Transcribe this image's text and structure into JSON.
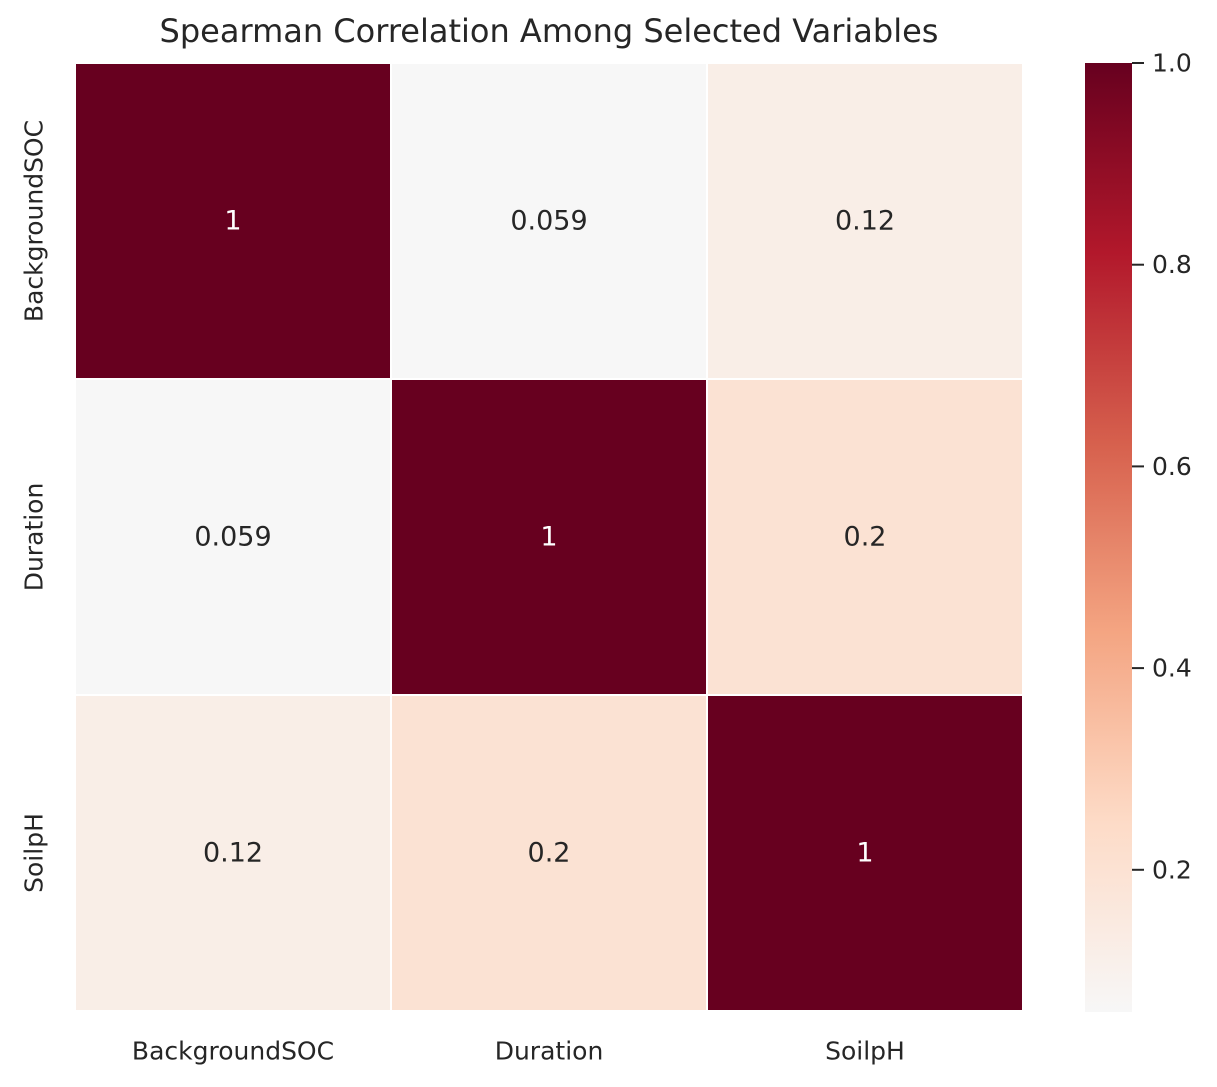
{
  "chart_data": {
    "type": "heatmap",
    "title": "Spearman Correlation Among Selected Variables",
    "x_categories": [
      "BackgroundSOC",
      "Duration",
      "SoilpH"
    ],
    "y_categories": [
      "BackgroundSOC",
      "Duration",
      "SoilpH"
    ],
    "values": [
      [
        1.0,
        0.059,
        0.12
      ],
      [
        0.059,
        1.0,
        0.2
      ],
      [
        0.12,
        0.2,
        1.0
      ]
    ],
    "annotations": [
      [
        "1",
        "0.059",
        "0.12"
      ],
      [
        "0.059",
        "1",
        "0.2"
      ],
      [
        "0.12",
        "0.2",
        "1"
      ]
    ],
    "colorbar": {
      "colormap": "RdBu_r",
      "vmin": 0.059,
      "vmax": 1.0,
      "ticks": [
        0.2,
        0.4,
        0.6,
        0.8,
        1.0
      ],
      "tick_labels": [
        "0.2",
        "0.4",
        "0.6",
        "0.8",
        "1.0"
      ]
    },
    "grid": false,
    "cell_border_color": "#ffffff"
  }
}
